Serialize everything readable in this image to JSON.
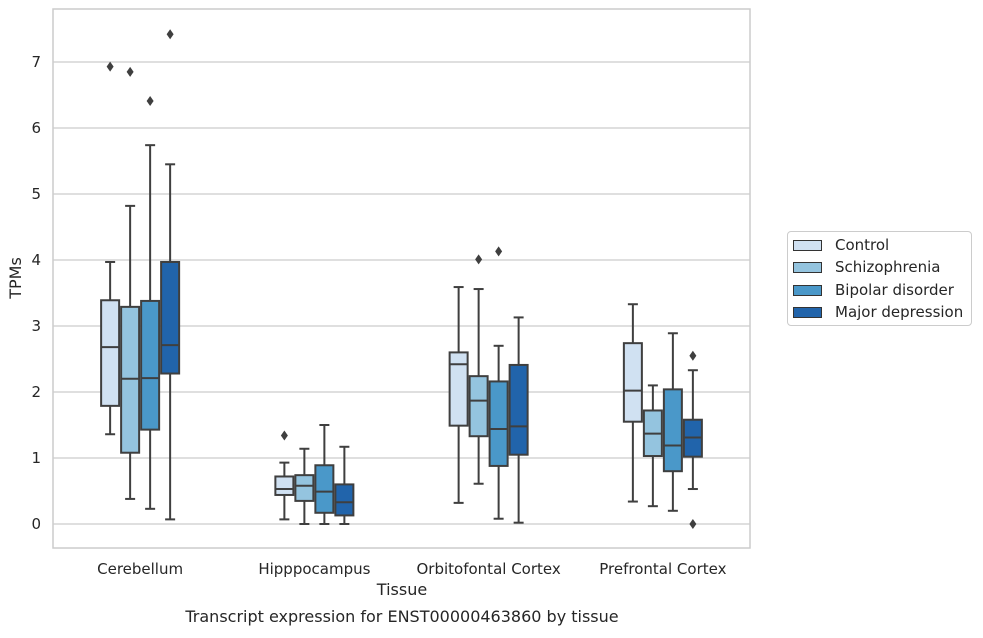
{
  "chart_data": {
    "type": "box",
    "title": "Transcript expression for ENST00000463860 by tissue",
    "xlabel": "Tissue",
    "ylabel": "TPMs",
    "ylim": [
      -0.35,
      7.8
    ],
    "yticks": [
      "0",
      "1",
      "2",
      "3",
      "4",
      "5",
      "6",
      "7"
    ],
    "grid": "horizontal",
    "legend_position": "right",
    "categories": [
      "Cerebellum",
      "Hipppocampus",
      "Orbitofontal Cortex",
      "Prefrontal Cortex"
    ],
    "series": [
      {
        "name": "Control",
        "color": "#d0e1f2",
        "boxes": [
          {
            "whisker_low": 1.36,
            "q1": 1.79,
            "median": 2.68,
            "q3": 3.39,
            "whisker_high": 3.97,
            "outliers": [
              6.93
            ]
          },
          {
            "whisker_low": 0.07,
            "q1": 0.44,
            "median": 0.53,
            "q3": 0.72,
            "whisker_high": 0.93,
            "outliers": [
              1.34
            ]
          },
          {
            "whisker_low": 0.32,
            "q1": 1.49,
            "median": 2.42,
            "q3": 2.6,
            "whisker_high": 3.59,
            "outliers": []
          },
          {
            "whisker_low": 0.34,
            "q1": 1.55,
            "median": 2.02,
            "q3": 2.74,
            "whisker_high": 3.33,
            "outliers": []
          }
        ]
      },
      {
        "name": "Schizophrenia",
        "color": "#94c4df",
        "boxes": [
          {
            "whisker_low": 0.38,
            "q1": 1.08,
            "median": 2.2,
            "q3": 3.29,
            "whisker_high": 4.82,
            "outliers": [
              6.85
            ]
          },
          {
            "whisker_low": 0.0,
            "q1": 0.35,
            "median": 0.58,
            "q3": 0.74,
            "whisker_high": 1.14,
            "outliers": []
          },
          {
            "whisker_low": 0.61,
            "q1": 1.33,
            "median": 1.87,
            "q3": 2.24,
            "whisker_high": 3.56,
            "outliers": [
              4.01
            ]
          },
          {
            "whisker_low": 0.27,
            "q1": 1.03,
            "median": 1.37,
            "q3": 1.72,
            "whisker_high": 2.1,
            "outliers": []
          }
        ]
      },
      {
        "name": "Bipolar disorder",
        "color": "#4a98c9",
        "boxes": [
          {
            "whisker_low": 0.23,
            "q1": 1.43,
            "median": 2.21,
            "q3": 3.38,
            "whisker_high": 5.74,
            "outliers": [
              6.41
            ]
          },
          {
            "whisker_low": 0.0,
            "q1": 0.17,
            "median": 0.49,
            "q3": 0.89,
            "whisker_high": 1.5,
            "outliers": []
          },
          {
            "whisker_low": 0.08,
            "q1": 0.88,
            "median": 1.44,
            "q3": 2.16,
            "whisker_high": 2.7,
            "outliers": [
              4.13
            ]
          },
          {
            "whisker_low": 0.2,
            "q1": 0.8,
            "median": 1.19,
            "q3": 2.04,
            "whisker_high": 2.89,
            "outliers": []
          }
        ]
      },
      {
        "name": "Major depression",
        "color": "#2164ab",
        "boxes": [
          {
            "whisker_low": 0.07,
            "q1": 2.28,
            "median": 2.71,
            "q3": 3.97,
            "whisker_high": 5.45,
            "outliers": [
              7.42
            ]
          },
          {
            "whisker_low": 0.0,
            "q1": 0.13,
            "median": 0.33,
            "q3": 0.6,
            "whisker_high": 1.17,
            "outliers": []
          },
          {
            "whisker_low": 0.02,
            "q1": 1.05,
            "median": 1.48,
            "q3": 2.41,
            "whisker_high": 3.13,
            "outliers": []
          },
          {
            "whisker_low": 0.53,
            "q1": 1.02,
            "median": 1.31,
            "q3": 1.58,
            "whisker_high": 2.33,
            "outliers": [
              2.55,
              0.0
            ]
          }
        ]
      }
    ]
  }
}
